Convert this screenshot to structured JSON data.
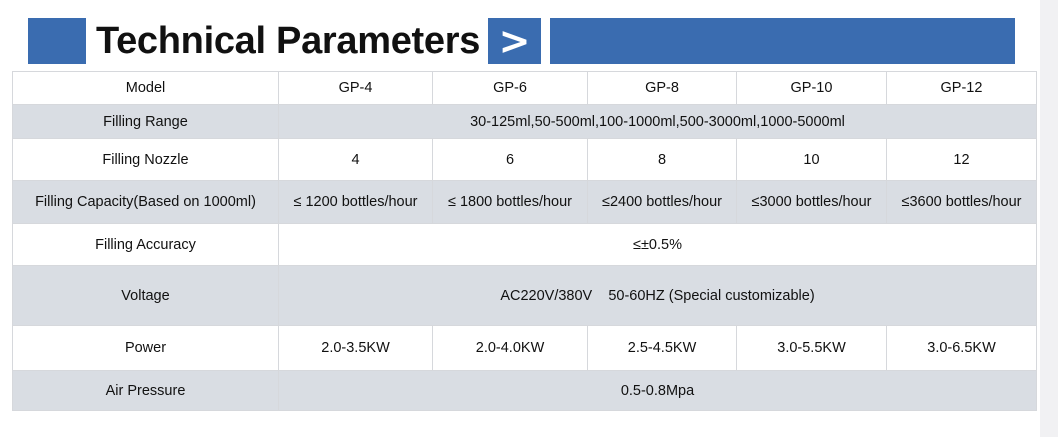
{
  "header": {
    "title": "Technical Parameters",
    "arrow": ">",
    "accent": "#3a6cb0"
  },
  "table": {
    "columns": [
      "Model",
      "GP-4",
      "GP-6",
      "GP-8",
      "GP-10",
      "GP-12"
    ],
    "rows": [
      {
        "label": "Filling Range",
        "merged": "30-125ml,50-500ml,100-1000ml,500-3000ml,1000-5000ml"
      },
      {
        "label": "Filling Nozzle",
        "values": [
          "4",
          "6",
          "8",
          "10",
          "12"
        ]
      },
      {
        "label": "Filling Capacity(Based on 1000ml)",
        "values": [
          "≤ 1200 bottles/hour",
          "≤ 1800 bottles/hour",
          "≤2400 bottles/hour",
          "≤3000 bottles/hour",
          "≤3600 bottles/hour"
        ]
      },
      {
        "label": "Filling Accuracy",
        "merged": "≤±0.5%"
      },
      {
        "label": "Voltage",
        "merged": "AC220V/380V    50-60HZ (Special customizable)"
      },
      {
        "label": "Power",
        "values": [
          "2.0-3.5KW",
          "2.0-4.0KW",
          "2.5-4.5KW",
          "3.0-5.5KW",
          "3.0-6.5KW"
        ]
      },
      {
        "label": "Air Pressure",
        "merged": "0.5-0.8Mpa"
      }
    ]
  }
}
